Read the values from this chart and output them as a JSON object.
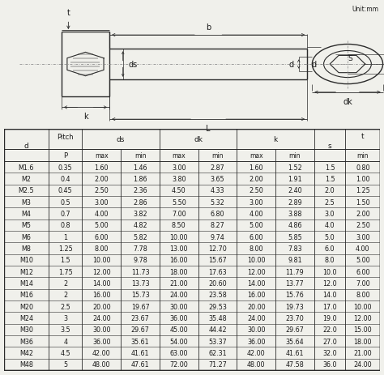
{
  "unit_text": "Unit:mm",
  "rows": [
    [
      "M1.6",
      "0.35",
      "1.60",
      "1.46",
      "3.00",
      "2.87",
      "1.60",
      "1.52",
      "1.5",
      "0.80"
    ],
    [
      "M2",
      "0.4",
      "2.00",
      "1.86",
      "3.80",
      "3.65",
      "2.00",
      "1.91",
      "1.5",
      "1.00"
    ],
    [
      "M2.5",
      "0.45",
      "2.50",
      "2.36",
      "4.50",
      "4.33",
      "2.50",
      "2.40",
      "2.0",
      "1.25"
    ],
    [
      "M3",
      "0.5",
      "3.00",
      "2.86",
      "5.50",
      "5.32",
      "3.00",
      "2.89",
      "2.5",
      "1.50"
    ],
    [
      "M4",
      "0.7",
      "4.00",
      "3.82",
      "7.00",
      "6.80",
      "4.00",
      "3.88",
      "3.0",
      "2.00"
    ],
    [
      "M5",
      "0.8",
      "5.00",
      "4.82",
      "8.50",
      "8.27",
      "5.00",
      "4.86",
      "4.0",
      "2.50"
    ],
    [
      "M6",
      "1",
      "6.00",
      "5.82",
      "10.00",
      "9.74",
      "6.00",
      "5.85",
      "5.0",
      "3.00"
    ],
    [
      "M8",
      "1.25",
      "8.00",
      "7.78",
      "13.00",
      "12.70",
      "8.00",
      "7.83",
      "6.0",
      "4.00"
    ],
    [
      "M10",
      "1.5",
      "10.00",
      "9.78",
      "16.00",
      "15.67",
      "10.00",
      "9.81",
      "8.0",
      "5.00"
    ],
    [
      "M12",
      "1.75",
      "12.00",
      "11.73",
      "18.00",
      "17.63",
      "12.00",
      "11.79",
      "10.0",
      "6.00"
    ],
    [
      "M14",
      "2",
      "14.00",
      "13.73",
      "21.00",
      "20.60",
      "14.00",
      "13.77",
      "12.0",
      "7.00"
    ],
    [
      "M16",
      "2",
      "16.00",
      "15.73",
      "24.00",
      "23.58",
      "16.00",
      "15.76",
      "14.0",
      "8.00"
    ],
    [
      "M20",
      "2.5",
      "20.00",
      "19.67",
      "30.00",
      "29.53",
      "20.00",
      "19.73",
      "17.0",
      "10.00"
    ],
    [
      "M24",
      "3",
      "24.00",
      "23.67",
      "36.00",
      "35.48",
      "24.00",
      "23.70",
      "19.0",
      "12.00"
    ],
    [
      "M30",
      "3.5",
      "30.00",
      "29.67",
      "45.00",
      "44.42",
      "30.00",
      "29.67",
      "22.0",
      "15.00"
    ],
    [
      "M36",
      "4",
      "36.00",
      "35.61",
      "54.00",
      "53.37",
      "36.00",
      "35.64",
      "27.0",
      "18.00"
    ],
    [
      "M42",
      "4.5",
      "42.00",
      "41.61",
      "63.00",
      "62.31",
      "42.00",
      "41.61",
      "32.0",
      "21.00"
    ],
    [
      "M48",
      "5",
      "48.00",
      "47.61",
      "72.00",
      "71.27",
      "48.00",
      "47.58",
      "36.0",
      "24.00"
    ]
  ],
  "bg_color": "#f0f0eb",
  "line_color": "#2a2a2a",
  "text_color": "#1a1a1a"
}
